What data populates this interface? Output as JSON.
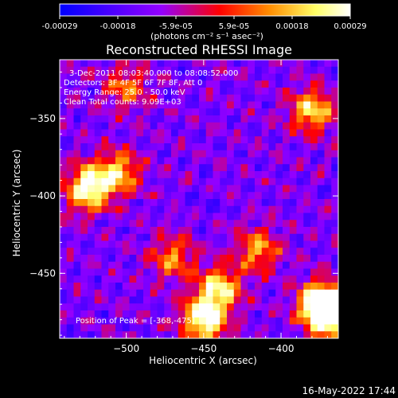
{
  "chart_data": {
    "type": "heatmap",
    "title": "Reconstructed RHESSI Image",
    "colorbar": {
      "ticks": [
        "-0.00029",
        "-0.00018",
        "-5.9e-05",
        "5.9e-05",
        "0.00018",
        "0.00029"
      ],
      "unit_label": "(photons cm⁻² s⁻¹ asec⁻²)",
      "range": [
        -0.00029,
        0.00029
      ],
      "colors": [
        "#0000ff",
        "#9400ff",
        "#ff0000",
        "#ff8c00",
        "#ffff66",
        "#ffffff"
      ]
    },
    "annotations": [
      "3-Dec-2011 08:03:40.000 to 08:08:52.000",
      "Detectors: 3F 4F 5F 6F 7F 8F, Att 0",
      "Energy Range: 25.0 - 50.0 keV",
      "Clean     Total counts: 9.09E+03"
    ],
    "peak_label": "Position of Peak = [-368,-475]",
    "xlabel": "Heliocentric X (arcsec)",
    "ylabel": "Heliocentric Y (arcsec)",
    "xlim": [
      -543,
      -363
    ],
    "ylim": [
      -492,
      -312
    ],
    "xticks": [
      -500,
      -450,
      -400
    ],
    "yticks": [
      -350,
      -400,
      -450
    ],
    "grid": false,
    "hotspots": [
      {
        "x": -525,
        "y": -395,
        "v": 1.0
      },
      {
        "x": -505,
        "y": -385,
        "v": 0.7
      },
      {
        "x": -450,
        "y": -480,
        "v": 1.0
      },
      {
        "x": -440,
        "y": -460,
        "v": 0.8
      },
      {
        "x": -375,
        "y": -470,
        "v": 0.95
      },
      {
        "x": -368,
        "y": -475,
        "v": 1.0
      },
      {
        "x": -380,
        "y": -345,
        "v": 0.75
      },
      {
        "x": -415,
        "y": -435,
        "v": 0.6
      },
      {
        "x": -500,
        "y": -330,
        "v": 0.5
      },
      {
        "x": -470,
        "y": -440,
        "v": 0.55
      }
    ]
  },
  "footer": {
    "timestamp": "16-May-2022 17:44"
  }
}
